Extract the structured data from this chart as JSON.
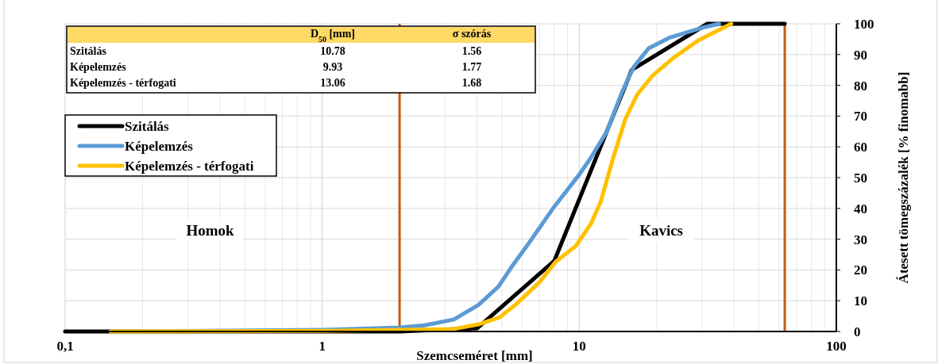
{
  "chart_data": {
    "type": "line",
    "xlabel": "Szemcseméret [mm]",
    "ylabel": "Átesett tömegszázalék [% finomabb]",
    "log": "x",
    "grid": true,
    "legend": "top left",
    "line_style": "solid",
    "marker": "none",
    "xlim": [
      0.1,
      100
    ],
    "xticks": [
      {
        "value": 0.1,
        "label": "0,1"
      },
      1,
      10,
      100
    ],
    "ylim": [
      0,
      100
    ],
    "yticks": [
      0,
      10,
      20,
      30,
      40,
      50,
      60,
      70,
      80,
      90,
      100
    ],
    "series": [
      {
        "name": "Szitálás",
        "color": "#000000",
        "x": [
          0.1,
          2,
          4,
          8,
          16,
          31.5,
          63
        ],
        "values": [
          0,
          0,
          1,
          23,
          85,
          100,
          100
        ]
      },
      {
        "name": "Képelemzés",
        "color": "#5b9bd5",
        "x": [
          0.15,
          0.5,
          1,
          1.6,
          2,
          2.5,
          3.25,
          4.05,
          4.85,
          5.5,
          6.4,
          7.9,
          10,
          11.1,
          12.8,
          14.7,
          16.3,
          18.6,
          22.6,
          30,
          35
        ],
        "values": [
          0,
          null,
          0.5,
          1,
          1.3,
          2,
          3.9,
          8.6,
          14.6,
          21.4,
          29,
          40,
          51,
          56.5,
          65,
          78,
          86,
          92,
          95.6,
          98.7,
          100
        ]
      },
      {
        "name": "Képelemzés - térfogati",
        "color": "#ffc000",
        "x": [
          0.15,
          1,
          2,
          3.25,
          4.05,
          4.9,
          5.7,
          7,
          8.1,
          9.7,
          11.1,
          12.1,
          13.5,
          15.1,
          16.8,
          19.2,
          23.3,
          29,
          39
        ],
        "values": [
          0,
          0.2,
          0.5,
          0.8,
          2.3,
          4.6,
          9,
          16,
          22.7,
          27.8,
          35,
          42,
          56,
          69,
          77,
          83,
          89,
          94.6,
          100
        ]
      }
    ],
    "ref_lines": [
      {
        "axis": "x",
        "value": 2,
        "color": "#c55a11"
      },
      {
        "axis": "x",
        "value": 63,
        "color": "#c55a11"
      }
    ],
    "annotations": [
      "Homok",
      "Kavics",
      "D$_{50}$ [mm]",
      "σ szórás",
      "Szitálás",
      "10.78",
      "1.56",
      "Képelemzés",
      "9.93",
      "1.77",
      "Képelemzés - térfogati",
      "13.06",
      "1.68"
    ]
  }
}
